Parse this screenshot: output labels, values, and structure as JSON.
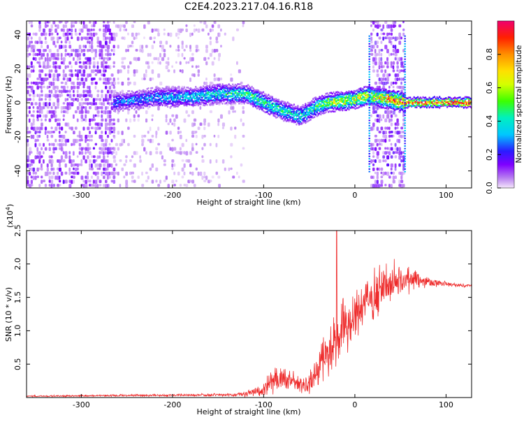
{
  "title": "C2E4.2023.217.04.16.R18",
  "chart_data": [
    {
      "type": "heatmap",
      "xlabel": "Height of straight line (km)",
      "ylabel": "Frequency (Hz)",
      "xlim": [
        -360,
        128
      ],
      "ylim": [
        -50,
        48
      ],
      "xticks": [
        -300,
        -200,
        -100,
        0,
        100
      ],
      "yticks": [
        -40,
        -20,
        0,
        20,
        40
      ],
      "xtick_labels": [
        "-300",
        "-200",
        "-100",
        "0",
        "100"
      ],
      "ytick_labels": [
        "-40",
        "-20",
        "0",
        "20",
        "40"
      ],
      "colorbar": {
        "label": "Normalized spectral amplitude",
        "range": [
          0,
          1
        ],
        "ticks": [
          0.0,
          0.2,
          0.4,
          0.6,
          0.8
        ],
        "tick_labels": [
          "0.0",
          "0.2",
          "0.4",
          "0.6",
          "0.8"
        ]
      },
      "regions": [
        {
          "name": "scattered-noise-left",
          "x": [
            -360,
            -265
          ],
          "freq_range": [
            -50,
            48
          ],
          "density": 0.55,
          "amplitude": 0.12
        },
        {
          "name": "scattered-noise-mid",
          "x": [
            -265,
            -150
          ],
          "freq_range": [
            -50,
            48
          ],
          "density": 0.22,
          "amplitude": 0.06
        },
        {
          "name": "scattered-noise-right",
          "x": [
            -150,
            -120
          ],
          "freq_range": [
            -50,
            48
          ],
          "density": 0.08,
          "amplitude": 0.05
        },
        {
          "name": "wideband-burst",
          "x": [
            17,
            53
          ],
          "freq_range": [
            -50,
            48
          ],
          "density": 0.5,
          "amplitude": 0.13
        }
      ],
      "carrier_track": [
        {
          "x": -265,
          "freq": 0,
          "amp": 0.25
        },
        {
          "x": -220,
          "freq": 3,
          "amp": 0.3
        },
        {
          "x": -180,
          "freq": 3,
          "amp": 0.35
        },
        {
          "x": -150,
          "freq": 5,
          "amp": 0.4
        },
        {
          "x": -120,
          "freq": 5,
          "amp": 0.45
        },
        {
          "x": -100,
          "freq": 0,
          "amp": 0.45
        },
        {
          "x": -80,
          "freq": -5,
          "amp": 0.4
        },
        {
          "x": -60,
          "freq": -8,
          "amp": 0.4
        },
        {
          "x": -45,
          "freq": -3,
          "amp": 0.45
        },
        {
          "x": -30,
          "freq": 0,
          "amp": 0.55
        },
        {
          "x": -10,
          "freq": 1,
          "amp": 0.6
        },
        {
          "x": 0,
          "freq": 2,
          "amp": 0.65
        },
        {
          "x": 14,
          "freq": 4,
          "amp": 0.6
        },
        {
          "x": 55,
          "freq": 0,
          "amp": 0.85
        },
        {
          "x": 128,
          "freq": 0,
          "amp": 0.9
        }
      ]
    },
    {
      "type": "line",
      "xlabel": "Height of straight line (km)",
      "ylabel": "SNR (10 * v/v)",
      "scale_label": "(x10",
      "scale_exp": "4",
      "scale_close": ")",
      "xlim": [
        -360,
        128
      ],
      "ylim": [
        0,
        2.5
      ],
      "xticks": [
        -300,
        -200,
        -100,
        0,
        100
      ],
      "yticks": [
        0.5,
        1.0,
        1.5,
        2.0,
        2.5
      ],
      "xtick_labels": [
        "-300",
        "-200",
        "-100",
        "0",
        "100"
      ],
      "ytick_labels": [
        "0.5",
        "1.0",
        "1.5",
        "2.0",
        "2.5"
      ],
      "series": [
        {
          "name": "SNR",
          "color": "#ee2b2b",
          "envelope": [
            {
              "x": -360,
              "mean": 0.02,
              "spread": 0.01
            },
            {
              "x": -260,
              "mean": 0.03,
              "spread": 0.015
            },
            {
              "x": -150,
              "mean": 0.04,
              "spread": 0.02
            },
            {
              "x": -120,
              "mean": 0.05,
              "spread": 0.04
            },
            {
              "x": -100,
              "mean": 0.12,
              "spread": 0.1
            },
            {
              "x": -85,
              "mean": 0.3,
              "spread": 0.22
            },
            {
              "x": -70,
              "mean": 0.22,
              "spread": 0.15
            },
            {
              "x": -55,
              "mean": 0.18,
              "spread": 0.12
            },
            {
              "x": -45,
              "mean": 0.3,
              "spread": 0.2
            },
            {
              "x": -30,
              "mean": 0.6,
              "spread": 0.35
            },
            {
              "x": -20,
              "mean": 0.9,
              "spread": 0.45
            },
            {
              "x": 0,
              "mean": 1.2,
              "spread": 0.4
            },
            {
              "x": 20,
              "mean": 1.5,
              "spread": 0.35
            },
            {
              "x": 40,
              "mean": 1.75,
              "spread": 0.3
            },
            {
              "x": 60,
              "mean": 1.8,
              "spread": 0.2
            },
            {
              "x": 80,
              "mean": 1.74,
              "spread": 0.07
            },
            {
              "x": 100,
              "mean": 1.7,
              "spread": 0.04
            },
            {
              "x": 128,
              "mean": 1.67,
              "spread": 0.02
            }
          ],
          "spike": {
            "x": -20,
            "value": 2.5
          }
        }
      ]
    }
  ]
}
